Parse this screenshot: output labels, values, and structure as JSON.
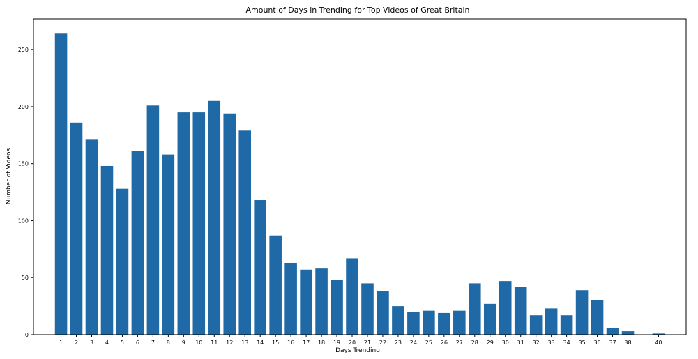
{
  "chart_data": {
    "type": "bar",
    "title": "Amount of Days in Trending for Top Videos of Great Britain",
    "xlabel": "Days Trending",
    "ylabel": "Number of Videos",
    "categories": [
      1,
      2,
      3,
      4,
      5,
      6,
      7,
      8,
      9,
      10,
      11,
      12,
      13,
      14,
      15,
      16,
      17,
      18,
      19,
      20,
      21,
      22,
      23,
      24,
      25,
      26,
      27,
      28,
      29,
      30,
      31,
      32,
      33,
      34,
      35,
      36,
      37,
      38,
      40
    ],
    "values": [
      264,
      186,
      171,
      148,
      128,
      161,
      201,
      158,
      195,
      195,
      205,
      194,
      179,
      118,
      87,
      63,
      57,
      58,
      48,
      67,
      45,
      38,
      25,
      20,
      21,
      19,
      21,
      45,
      27,
      47,
      42,
      17,
      23,
      17,
      39,
      30,
      6,
      3,
      1
    ],
    "x_ticks": [
      1,
      2,
      3,
      4,
      5,
      6,
      7,
      8,
      9,
      10,
      11,
      12,
      13,
      14,
      15,
      16,
      17,
      18,
      19,
      20,
      21,
      22,
      23,
      24,
      25,
      26,
      27,
      28,
      29,
      30,
      31,
      32,
      33,
      34,
      35,
      36,
      37,
      38,
      40
    ],
    "y_ticks": [
      0,
      50,
      100,
      150,
      200,
      250
    ],
    "xlim": [
      -0.8,
      41.8
    ],
    "ylim": [
      0,
      277
    ],
    "bar_color": "#1f6aa6",
    "grid": false,
    "legend": "none"
  }
}
